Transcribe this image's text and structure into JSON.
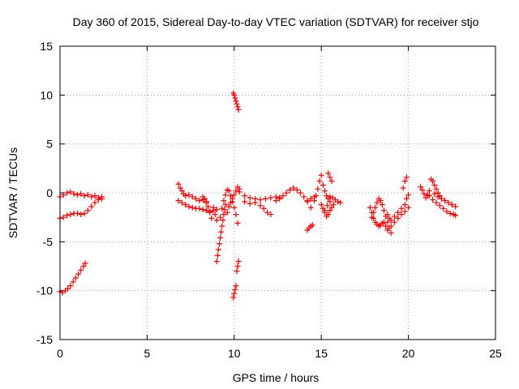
{
  "chart_data": {
    "type": "scatter",
    "title": "Day 360 of 2015, Sidereal Day-to-day VTEC variation (SDTVAR) for receiver stjo",
    "xlabel": "GPS time / hours",
    "ylabel": "SDTVAR / TECUs",
    "xlim": [
      0,
      25
    ],
    "ylim": [
      -15,
      15
    ],
    "xticks": [
      0,
      5,
      10,
      15,
      20,
      25
    ],
    "yticks": [
      -15,
      -10,
      -5,
      0,
      5,
      10,
      15
    ],
    "grid": true,
    "marker": "+",
    "color": "#ff0000",
    "segments": [
      {
        "name": "arc-0a",
        "points": [
          [
            0.0,
            -0.4
          ],
          [
            0.2,
            -0.2
          ],
          [
            0.4,
            0.0
          ],
          [
            0.6,
            0.1
          ],
          [
            0.8,
            -0.1
          ],
          [
            1.0,
            -0.2
          ],
          [
            1.2,
            -0.1
          ],
          [
            1.4,
            -0.3
          ],
          [
            1.6,
            -0.2
          ],
          [
            1.8,
            -0.4
          ],
          [
            2.0,
            -0.3
          ],
          [
            2.2,
            -0.5
          ],
          [
            2.4,
            -0.4
          ]
        ]
      },
      {
        "name": "arc-0b",
        "points": [
          [
            0.0,
            -2.6
          ],
          [
            0.2,
            -2.5
          ],
          [
            0.4,
            -2.3
          ],
          [
            0.6,
            -2.2
          ],
          [
            0.8,
            -2.1
          ],
          [
            1.0,
            -2.1
          ],
          [
            1.2,
            -2.2
          ],
          [
            1.4,
            -2.1
          ],
          [
            1.6,
            -1.8
          ],
          [
            1.8,
            -1.4
          ],
          [
            2.0,
            -1.0
          ],
          [
            2.2,
            -0.7
          ],
          [
            2.4,
            -0.6
          ]
        ]
      },
      {
        "name": "arc-0c",
        "points": [
          [
            0.0,
            -10.1
          ],
          [
            0.15,
            -10.2
          ],
          [
            0.3,
            -10.0
          ],
          [
            0.45,
            -9.8
          ],
          [
            0.6,
            -9.5
          ],
          [
            0.75,
            -9.1
          ],
          [
            0.9,
            -8.7
          ],
          [
            1.05,
            -8.3
          ],
          [
            1.2,
            -7.9
          ],
          [
            1.35,
            -7.5
          ],
          [
            1.45,
            -7.2
          ]
        ]
      },
      {
        "name": "arc-7a",
        "points": [
          [
            6.8,
            0.9
          ],
          [
            6.9,
            0.5
          ],
          [
            7.0,
            0.2
          ],
          [
            7.1,
            -0.1
          ],
          [
            7.2,
            -0.3
          ],
          [
            7.4,
            -0.2
          ],
          [
            7.6,
            -0.4
          ],
          [
            7.8,
            -0.6
          ],
          [
            8.0,
            -0.8
          ],
          [
            8.2,
            -0.7
          ],
          [
            8.4,
            -0.9
          ]
        ]
      },
      {
        "name": "arc-7b",
        "points": [
          [
            6.8,
            -0.8
          ],
          [
            7.0,
            -1.0
          ],
          [
            7.2,
            -1.2
          ],
          [
            7.4,
            -1.4
          ],
          [
            7.6,
            -1.5
          ],
          [
            7.8,
            -1.6
          ],
          [
            8.0,
            -1.6
          ],
          [
            8.2,
            -1.7
          ],
          [
            8.4,
            -1.8
          ],
          [
            8.6,
            -1.9
          ],
          [
            8.8,
            -1.8
          ],
          [
            9.0,
            -1.7
          ]
        ]
      },
      {
        "name": "arc-8",
        "points": [
          [
            8.2,
            -0.4
          ],
          [
            8.3,
            -0.6
          ],
          [
            8.4,
            -1.0
          ],
          [
            8.5,
            -1.4
          ],
          [
            8.6,
            -2.0
          ],
          [
            8.7,
            -2.6
          ],
          [
            8.8,
            -1.5
          ],
          [
            8.9,
            -2.2
          ],
          [
            9.0,
            -2.8
          ]
        ]
      },
      {
        "name": "arc-9a",
        "points": [
          [
            9.0,
            -7.0
          ],
          [
            9.05,
            -6.4
          ],
          [
            9.1,
            -5.8
          ],
          [
            9.15,
            -5.2
          ],
          [
            9.2,
            -4.6
          ],
          [
            9.25,
            -4.0
          ],
          [
            9.3,
            -3.4
          ],
          [
            9.35,
            -2.8
          ],
          [
            9.4,
            -2.2
          ],
          [
            9.45,
            -1.7
          ],
          [
            9.5,
            -1.2
          ]
        ]
      },
      {
        "name": "arc-9b",
        "points": [
          [
            9.2,
            -2.5
          ],
          [
            9.3,
            -1.6
          ],
          [
            9.4,
            -0.8
          ],
          [
            9.5,
            -0.2
          ],
          [
            9.6,
            0.3
          ],
          [
            9.7,
            0.2
          ],
          [
            9.8,
            -0.3
          ],
          [
            9.9,
            -0.9
          ],
          [
            10.0,
            -1.5
          ],
          [
            10.1,
            -2.2
          ],
          [
            10.2,
            -3.1
          ]
        ]
      },
      {
        "name": "arc-9c",
        "points": [
          [
            9.6,
            -2.0
          ],
          [
            9.7,
            -1.4
          ],
          [
            9.8,
            -1.0
          ],
          [
            9.9,
            -0.6
          ],
          [
            10.0,
            -0.2
          ],
          [
            10.1,
            0.2
          ],
          [
            10.2,
            0.6
          ],
          [
            10.3,
            0.4
          ]
        ]
      },
      {
        "name": "arc-10a",
        "points": [
          [
            9.95,
            10.2
          ],
          [
            10.0,
            10.0
          ],
          [
            10.05,
            9.7
          ],
          [
            10.1,
            9.4
          ],
          [
            10.15,
            9.1
          ],
          [
            10.2,
            8.8
          ],
          [
            10.25,
            8.5
          ]
        ]
      },
      {
        "name": "arc-10b",
        "points": [
          [
            9.95,
            -10.7
          ],
          [
            10.0,
            -10.3
          ],
          [
            10.05,
            -9.9
          ],
          [
            10.1,
            -9.5
          ],
          [
            10.15,
            -8.0
          ],
          [
            10.2,
            -7.5
          ],
          [
            10.25,
            -7.0
          ]
        ]
      },
      {
        "name": "arc-10c",
        "points": [
          [
            10.3,
            0.1
          ],
          [
            10.6,
            -0.3
          ],
          [
            10.9,
            -0.5
          ],
          [
            11.2,
            -0.6
          ],
          [
            11.5,
            -0.7
          ],
          [
            11.8,
            -0.6
          ],
          [
            12.1,
            -0.5
          ],
          [
            12.4,
            -0.4
          ],
          [
            12.6,
            -0.6
          ]
        ]
      },
      {
        "name": "arc-10d",
        "points": [
          [
            10.6,
            -0.9
          ],
          [
            10.9,
            -1.1
          ],
          [
            11.2,
            -1.0
          ],
          [
            11.5,
            -1.3
          ],
          [
            11.7,
            -1.6
          ],
          [
            11.9,
            -2.0
          ],
          [
            12.1,
            -2.2
          ]
        ]
      },
      {
        "name": "arc-12",
        "points": [
          [
            12.4,
            -0.8
          ],
          [
            12.6,
            -0.5
          ],
          [
            12.8,
            -0.3
          ],
          [
            13.0,
            0.0
          ],
          [
            13.2,
            0.3
          ],
          [
            13.4,
            0.5
          ],
          [
            13.6,
            0.3
          ],
          [
            13.8,
            0.0
          ],
          [
            14.0,
            -0.4
          ],
          [
            14.2,
            -0.9
          ],
          [
            14.4,
            -1.5
          ]
        ]
      },
      {
        "name": "arc-14",
        "points": [
          [
            14.2,
            -3.8
          ],
          [
            14.3,
            -3.6
          ],
          [
            14.4,
            -3.4
          ],
          [
            14.5,
            -3.3
          ],
          [
            14.2,
            -0.8
          ],
          [
            14.4,
            -0.6
          ],
          [
            14.6,
            -0.4
          ]
        ]
      },
      {
        "name": "arc-15a",
        "points": [
          [
            14.6,
            -0.8
          ],
          [
            14.7,
            -0.3
          ],
          [
            14.8,
            0.4
          ],
          [
            14.9,
            1.2
          ],
          [
            15.0,
            1.8
          ],
          [
            15.1,
            0.8
          ],
          [
            15.2,
            0.2
          ],
          [
            15.3,
            -0.3
          ],
          [
            15.4,
            -0.6
          ],
          [
            15.5,
            -0.4
          ]
        ]
      },
      {
        "name": "arc-15b",
        "points": [
          [
            15.2,
            -1.8
          ],
          [
            15.35,
            -1.3
          ],
          [
            15.5,
            -0.9
          ],
          [
            15.65,
            -0.5
          ],
          [
            15.8,
            -0.7
          ],
          [
            15.95,
            -0.9
          ],
          [
            16.1,
            -1.0
          ],
          [
            15.4,
            2.0
          ],
          [
            15.5,
            1.6
          ],
          [
            15.6,
            1.2
          ]
        ]
      },
      {
        "name": "arc-15c",
        "points": [
          [
            15.0,
            -1.2
          ],
          [
            15.1,
            -1.6
          ],
          [
            15.2,
            -2.0
          ],
          [
            15.3,
            -2.4
          ],
          [
            15.4,
            -2.2
          ],
          [
            15.5,
            -1.8
          ],
          [
            15.6,
            -1.5
          ],
          [
            15.7,
            -1.2
          ]
        ]
      },
      {
        "name": "arc-18a",
        "points": [
          [
            17.8,
            -1.5
          ],
          [
            17.9,
            -2.0
          ],
          [
            18.0,
            -2.6
          ],
          [
            18.1,
            -3.0
          ],
          [
            18.2,
            -3.2
          ],
          [
            18.3,
            -3.4
          ],
          [
            18.4,
            -3.3
          ],
          [
            18.5,
            -3.1
          ]
        ]
      },
      {
        "name": "arc-18b",
        "points": [
          [
            17.9,
            -2.5
          ],
          [
            18.0,
            -2.0
          ],
          [
            18.1,
            -1.5
          ],
          [
            18.2,
            -1.0
          ],
          [
            18.3,
            -0.6
          ],
          [
            18.4,
            -0.8
          ],
          [
            18.5,
            -1.2
          ],
          [
            18.6,
            -1.8
          ],
          [
            18.7,
            -2.4
          ],
          [
            18.8,
            -3.0
          ],
          [
            18.9,
            -3.6
          ],
          [
            19.0,
            -4.1
          ]
        ]
      },
      {
        "name": "arc-19",
        "points": [
          [
            18.8,
            -2.2
          ],
          [
            18.9,
            -2.6
          ],
          [
            19.0,
            -2.8
          ],
          [
            19.2,
            -2.4
          ],
          [
            19.4,
            -2.0
          ],
          [
            19.6,
            -1.6
          ],
          [
            19.8,
            -1.2
          ],
          [
            19.9,
            -0.6
          ],
          [
            20.0,
            -0.2
          ],
          [
            19.7,
            0.5
          ],
          [
            19.8,
            1.2
          ],
          [
            19.9,
            1.6
          ]
        ]
      },
      {
        "name": "arc-19b",
        "points": [
          [
            18.6,
            -3.0
          ],
          [
            18.7,
            -3.4
          ],
          [
            18.8,
            -3.8
          ],
          [
            19.0,
            -3.4
          ],
          [
            19.2,
            -3.0
          ],
          [
            19.4,
            -2.6
          ],
          [
            19.6,
            -2.2
          ],
          [
            19.8,
            -1.9
          ],
          [
            20.0,
            -1.5
          ]
        ]
      },
      {
        "name": "arc-21a",
        "points": [
          [
            20.7,
            0.6
          ],
          [
            20.8,
            0.3
          ],
          [
            20.9,
            -0.1
          ],
          [
            21.0,
            -0.5
          ],
          [
            21.1,
            -0.2
          ],
          [
            21.2,
            0.2
          ],
          [
            21.3,
            1.4
          ],
          [
            21.4,
            1.2
          ],
          [
            21.5,
            0.8
          ],
          [
            21.6,
            0.4
          ],
          [
            21.7,
            0.0
          ],
          [
            21.8,
            -0.3
          ]
        ]
      },
      {
        "name": "arc-21b",
        "points": [
          [
            21.2,
            -0.3
          ],
          [
            21.4,
            -0.7
          ],
          [
            21.6,
            -1.0
          ],
          [
            21.8,
            -1.3
          ],
          [
            22.0,
            -1.6
          ],
          [
            22.2,
            -1.9
          ],
          [
            22.4,
            -2.1
          ],
          [
            22.6,
            -2.2
          ],
          [
            22.7,
            -2.3
          ]
        ]
      },
      {
        "name": "arc-21c",
        "points": [
          [
            21.5,
            -0.1
          ],
          [
            21.7,
            -0.4
          ],
          [
            21.9,
            -0.6
          ],
          [
            22.1,
            -0.8
          ],
          [
            22.3,
            -1.0
          ],
          [
            22.5,
            -1.2
          ],
          [
            22.7,
            -1.4
          ]
        ]
      }
    ]
  }
}
